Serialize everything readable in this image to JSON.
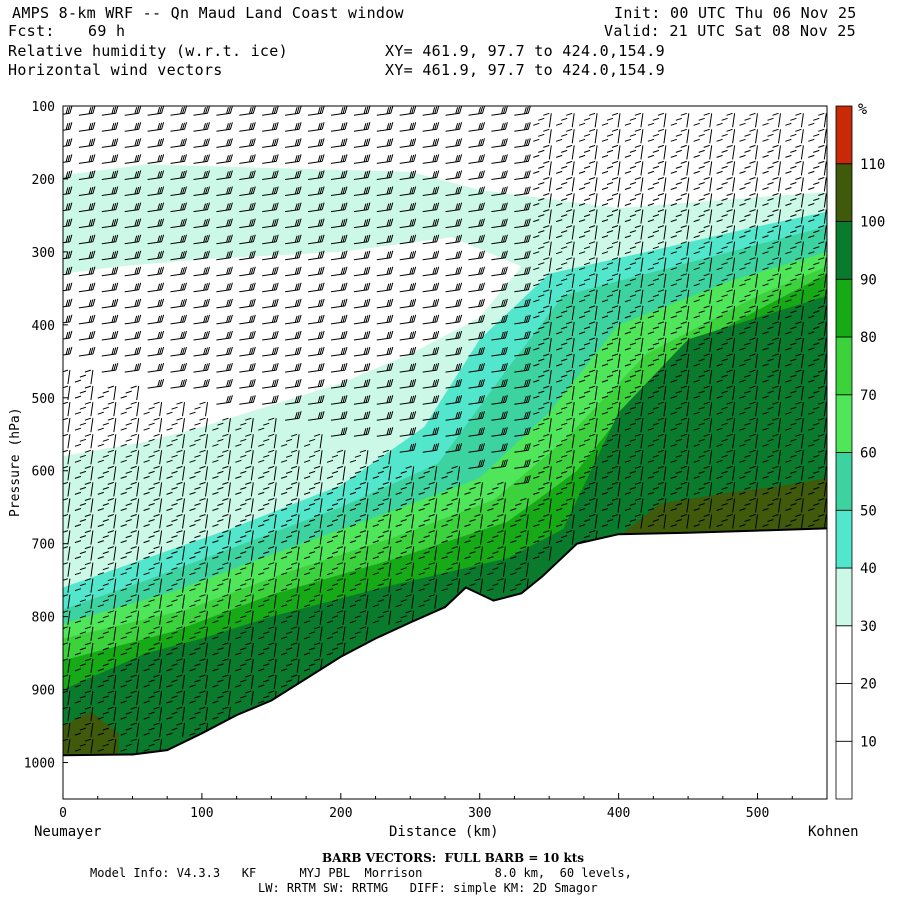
{
  "header": {
    "title": "AMPS 8-km WRF -- Qn Maud Land Coast window",
    "fcst_label": "Fcst:",
    "fcst_value": "69 h",
    "field1": "Relative humidity (w.r.t. ice)",
    "field2": "Horizontal wind vectors",
    "init": "Init: 00 UTC Thu 06 Nov 25",
    "valid": "Valid: 21 UTC Sat 08 Nov 25",
    "xy1": "XY= 461.9, 97.7 to 424.0,154.9",
    "xy2": "XY= 461.9, 97.7 to 424.0,154.9"
  },
  "chart_data": {
    "type": "heatmap",
    "title": "Relative humidity (w.r.t. ice) and horizontal wind vectors cross-section",
    "xlabel": "Distance (km)",
    "ylabel": "Pressure (hPa)",
    "xlim": [
      0,
      550
    ],
    "ylim": [
      1050,
      100
    ],
    "x_ticks": [
      0,
      100,
      200,
      300,
      400,
      500
    ],
    "y_ticks": [
      100,
      200,
      300,
      400,
      500,
      600,
      700,
      800,
      900,
      1000
    ],
    "left_endpoint": "Neumayer",
    "right_endpoint": "Kohnen",
    "colorbar": {
      "unit": "%",
      "levels": [
        10,
        20,
        30,
        40,
        50,
        60,
        70,
        80,
        90,
        100,
        110
      ],
      "colors": [
        "#ffffff",
        "#ffffff",
        "#ffffff",
        "#ccf8e8",
        "#52e6cc",
        "#3cd3a0",
        "#50e65a",
        "#3cd23c",
        "#16aa16",
        "#0a7a2c",
        "#3e5a0a",
        "#c82a08"
      ]
    },
    "terrain_profile": [
      {
        "x": 0,
        "p": 990
      },
      {
        "x": 50,
        "p": 989
      },
      {
        "x": 75,
        "p": 983
      },
      {
        "x": 100,
        "p": 960
      },
      {
        "x": 125,
        "p": 935
      },
      {
        "x": 150,
        "p": 915
      },
      {
        "x": 175,
        "p": 885
      },
      {
        "x": 200,
        "p": 855
      },
      {
        "x": 225,
        "p": 830
      },
      {
        "x": 250,
        "p": 808
      },
      {
        "x": 275,
        "p": 787
      },
      {
        "x": 290,
        "p": 760
      },
      {
        "x": 310,
        "p": 778
      },
      {
        "x": 330,
        "p": 768
      },
      {
        "x": 345,
        "p": 745
      },
      {
        "x": 370,
        "p": 700
      },
      {
        "x": 400,
        "p": 687
      },
      {
        "x": 450,
        "p": 685
      },
      {
        "x": 500,
        "p": 682
      },
      {
        "x": 550,
        "p": 679
      }
    ],
    "rh_fields": [
      {
        "rh": 30,
        "x": [
          0,
          550
        ],
        "note": "moist upper layer 200-300 hPa on left, deepening band toward right"
      },
      {
        "rh": 90,
        "x": [
          350,
          550
        ],
        "note": "deep moist layer above terrain on the plateau"
      },
      {
        "rh": 100,
        "x": [
          420,
          550
        ],
        "note": "saturated layer near 620-690 hPa over plateau"
      }
    ],
    "barb_note": "BARB VECTORS: FULL BARB = 10 kts"
  },
  "footer": {
    "barb": "BARB VECTORS:  FULL BARB = 10 kts",
    "model_line1": "Model Info: V4.3.3   KF      MYJ PBL  Morrison          8.0 km,  60 levels,",
    "model_line2": "LW: RRTM SW: RRTMG   DIFF: simple KM: 2D Smagor"
  },
  "axis": {
    "xlabel": "Distance (km)",
    "ylabel": "Pressure (hPa)",
    "left": "Neumayer",
    "right": "Kohnen",
    "cb_unit": "%"
  }
}
